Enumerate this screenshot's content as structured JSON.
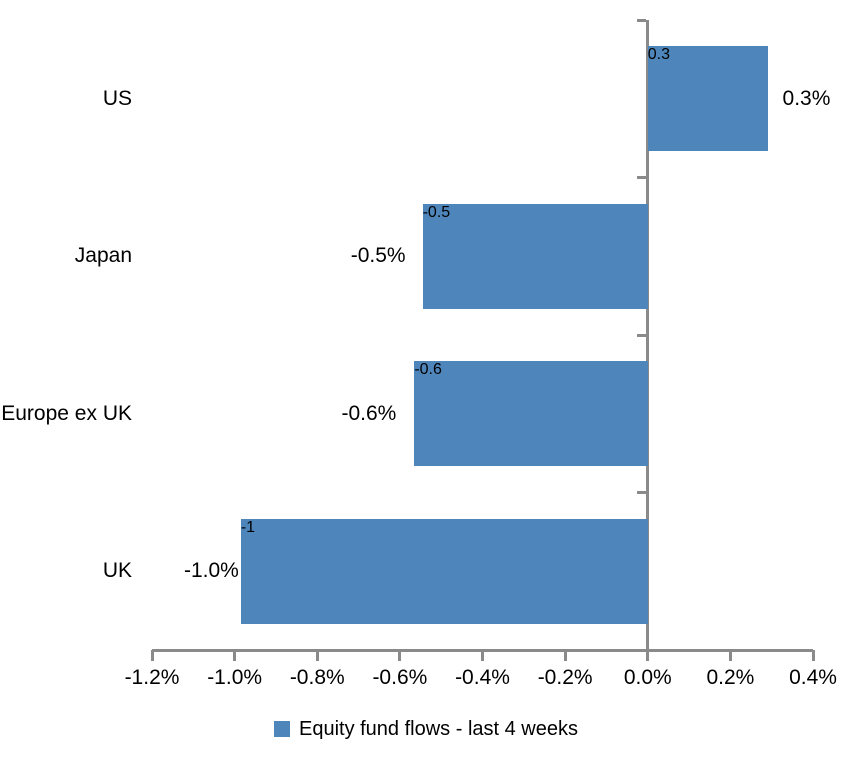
{
  "chart_data": {
    "type": "bar",
    "orientation": "horizontal",
    "title": "",
    "xlabel": "",
    "ylabel": "",
    "categories": [
      "US",
      "Japan",
      "Europe ex UK",
      "UK"
    ],
    "values": [
      0.3,
      -0.5,
      -0.6,
      -1.0
    ],
    "value_labels": [
      "0.3%",
      "-0.5%",
      "-0.6%",
      "-1.0%"
    ],
    "bar_values_pct": [
      0.29,
      -0.545,
      -0.565,
      -0.985
    ],
    "series": [
      {
        "name": "Equity fund flows - last 4 weeks",
        "values": [
          0.3,
          -0.5,
          -0.6,
          -1.0
        ]
      }
    ],
    "xlim": [
      -1.2,
      0.4
    ],
    "x_ticks": [
      -1.2,
      -1.0,
      -0.8,
      -0.6,
      -0.4,
      -0.2,
      0.0,
      0.2,
      0.4
    ],
    "x_tick_labels": [
      "-1.2%",
      "-1.0%",
      "-0.8%",
      "-0.6%",
      "-0.4%",
      "-0.2%",
      "0.0%",
      "0.2%",
      "0.4%"
    ],
    "grid": false,
    "legend_position": "bottom",
    "colors": {
      "bar": "#4E86BC",
      "axis": "#8A8A8A",
      "text": "#000000",
      "background": "#FFFFFF"
    }
  },
  "legend": {
    "label": "Equity fund flows - last 4 weeks"
  }
}
